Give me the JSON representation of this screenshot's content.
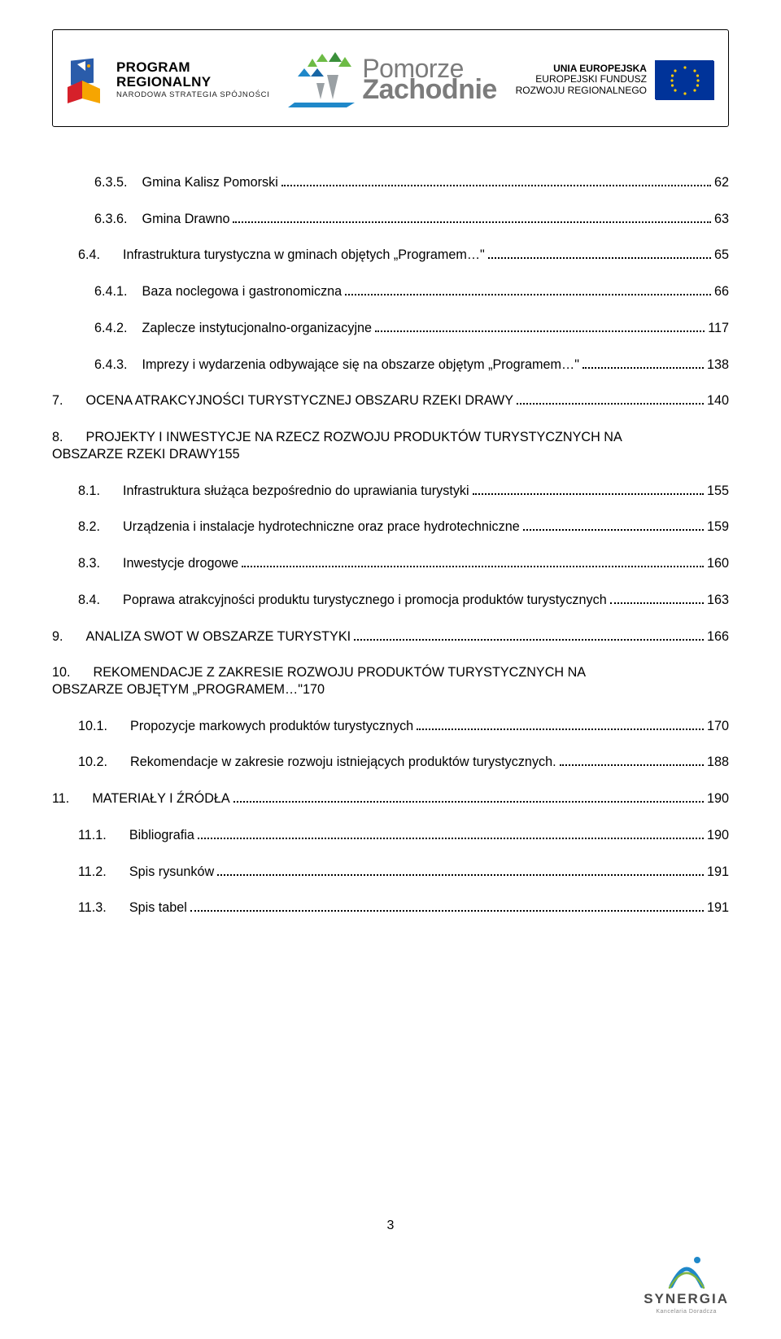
{
  "banner": {
    "program": {
      "l1": "PROGRAM",
      "l2": "REGIONALNY",
      "l3": "NARODOWA STRATEGIA SPÓJNOŚCI"
    },
    "pomorze": {
      "top": "Pomorze",
      "bot": "Zachodnie"
    },
    "eu": {
      "l1": "UNIA EUROPEJSKA",
      "l2": "EUROPEJSKI FUNDUSZ",
      "l3": "ROZWOJU REGIONALNEGO"
    }
  },
  "toc": [
    {
      "lvl": 2,
      "num": "6.3.5.",
      "label": "Gmina Kalisz Pomorski",
      "page": "62"
    },
    {
      "lvl": 2,
      "num": "6.3.6.",
      "label": "Gmina Drawno",
      "page": "63"
    },
    {
      "lvl": 1,
      "num": "6.4.",
      "label": "Infrastruktura turystyczna w gminach objętych „Programem…\"",
      "page": "65"
    },
    {
      "lvl": 2,
      "num": "6.4.1.",
      "label": "Baza noclegowa i gastronomiczna",
      "page": "66"
    },
    {
      "lvl": 2,
      "num": "6.4.2.",
      "label": "Zaplecze instytucjonalno-organizacyjne",
      "page": "117"
    },
    {
      "lvl": 2,
      "num": "6.4.3.",
      "label": "Imprezy i wydarzenia odbywające się na obszarze objętym „Programem…\"",
      "page": "138"
    },
    {
      "lvl": 0,
      "num": "7.",
      "label": "OCENA ATRAKCYJNOŚCI TURYSTYCZNEJ OBSZARU RZEKI DRAWY",
      "page": "140"
    },
    {
      "lvl": 0,
      "num": "8.",
      "label_l1": "PROJEKTY I INWESTYCJE NA RZECZ ROZWOJU PRODUKTÓW TURYSTYCZNYCH NA",
      "label_l2": "OBSZARZE RZEKI DRAWY",
      "page": "155",
      "wrap": true
    },
    {
      "lvl": 1,
      "num": "8.1.",
      "label": "Infrastruktura służąca bezpośrednio do uprawiania turystyki",
      "page": "155"
    },
    {
      "lvl": 1,
      "num": "8.2.",
      "label": "Urządzenia i instalacje hydrotechniczne oraz prace hydrotechniczne",
      "page": "159"
    },
    {
      "lvl": 1,
      "num": "8.3.",
      "label": "Inwestycje drogowe",
      "page": "160"
    },
    {
      "lvl": 1,
      "num": "8.4.",
      "label": "Poprawa atrakcyjności produktu turystycznego i promocja produktów turystycznych",
      "page": "163"
    },
    {
      "lvl": 0,
      "num": "9.",
      "label": "ANALIZA SWOT W OBSZARZE TURYSTYKI",
      "page": "166"
    },
    {
      "lvl": 0,
      "num": "10.",
      "label_l1": "REKOMENDACJE Z ZAKRESIE ROZWOJU PRODUKTÓW TURYSTYCZNYCH NA",
      "label_l2": "OBSZARZE OBJĘTYM „PROGRAMEM…\"",
      "page": "170",
      "wrap": true
    },
    {
      "lvl": 1,
      "num": "10.1.",
      "label": "Propozycje markowych produktów turystycznych",
      "page": "170"
    },
    {
      "lvl": 1,
      "num": "10.2.",
      "label": "Rekomendacje w zakresie rozwoju istniejących produktów turystycznych.",
      "page": "188"
    },
    {
      "lvl": 0,
      "num": "11.",
      "label": "MATERIAŁY I ŹRÓDŁA",
      "page": "190"
    },
    {
      "lvl": 1,
      "num": "11.1.",
      "label": "Bibliografia",
      "page": "190"
    },
    {
      "lvl": 1,
      "num": "11.2.",
      "label": "Spis rysunków",
      "page": "191"
    },
    {
      "lvl": 1,
      "num": "11.3.",
      "label": "Spis tabel",
      "page": "191"
    }
  ],
  "footer": {
    "pagenum": "3",
    "brand": "SYNERGIA",
    "brand_sub": "Kancelaria Doradcza"
  },
  "colors": {
    "flag_blue": "#003399",
    "flag_yellow": "#ffcc00",
    "grey_text": "#7c7c7c",
    "syn_blue": "#1f88c9",
    "syn_green": "#7db441",
    "syn_dk": "#4a4a4a"
  }
}
